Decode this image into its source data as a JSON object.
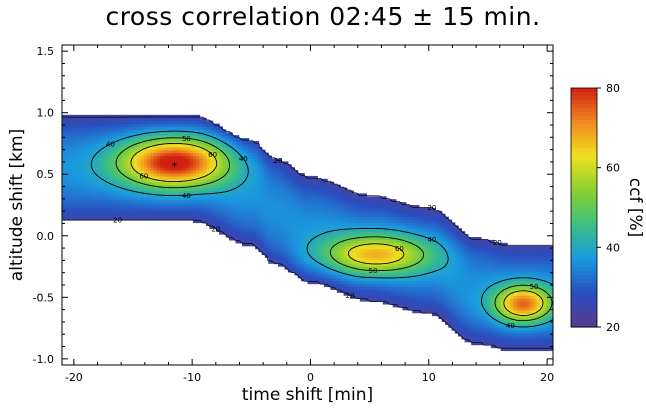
{
  "chart_data": {
    "type": "heatmap",
    "title": "cross correlation  02:45 ± 15 min.",
    "xlabel": "time shift [min]",
    "ylabel": "altitude shift [km]",
    "xlim": [
      -21,
      20.5
    ],
    "ylim": [
      -1.05,
      1.55
    ],
    "xticks": [
      -20,
      -10,
      0,
      10,
      20
    ],
    "yticks": [
      1.5,
      1.0,
      0.5,
      0.0,
      -0.5,
      -1.0
    ],
    "xtick_labels": [
      "-20",
      "-10",
      "0",
      "10",
      "20"
    ],
    "ytick_labels": [
      "1.5",
      "1.0",
      "0.5",
      "0.0",
      "-0.5",
      "-1.0"
    ],
    "colorbar": {
      "label": "ccf [%]",
      "range": [
        20,
        80
      ],
      "ticks": [
        "80",
        "60",
        "40",
        "20"
      ],
      "colors": [
        "#5a3a8a",
        "#2a4fc0",
        "#1a9ae0",
        "#3cc080",
        "#8ad030",
        "#f0e020",
        "#f08a20",
        "#d02010"
      ]
    },
    "contour_levels": [
      20,
      40,
      50,
      60
    ],
    "contour_labels": [
      "20",
      "40",
      "50",
      "60"
    ],
    "band_center": [
      {
        "x": -21,
        "y": 0.55
      },
      {
        "x": -15,
        "y": 0.55
      },
      {
        "x": -10,
        "y": 0.55
      },
      {
        "x": -5,
        "y": 0.35
      },
      {
        "x": -3,
        "y": 0.2
      },
      {
        "x": 0,
        "y": 0.05
      },
      {
        "x": 5,
        "y": -0.1
      },
      {
        "x": 10,
        "y": -0.2
      },
      {
        "x": 14,
        "y": -0.45
      },
      {
        "x": 17,
        "y": -0.5
      },
      {
        "x": 20.5,
        "y": -0.5
      }
    ],
    "peaks": [
      {
        "x": -11.5,
        "y": 0.6,
        "ccf": 80
      },
      {
        "x": 5.5,
        "y": -0.15,
        "ccf": 65
      },
      {
        "x": 18,
        "y": -0.55,
        "ccf": 72
      }
    ],
    "maximum_marker": {
      "x": -11.5,
      "y": 0.6,
      "symbol": "*"
    }
  }
}
